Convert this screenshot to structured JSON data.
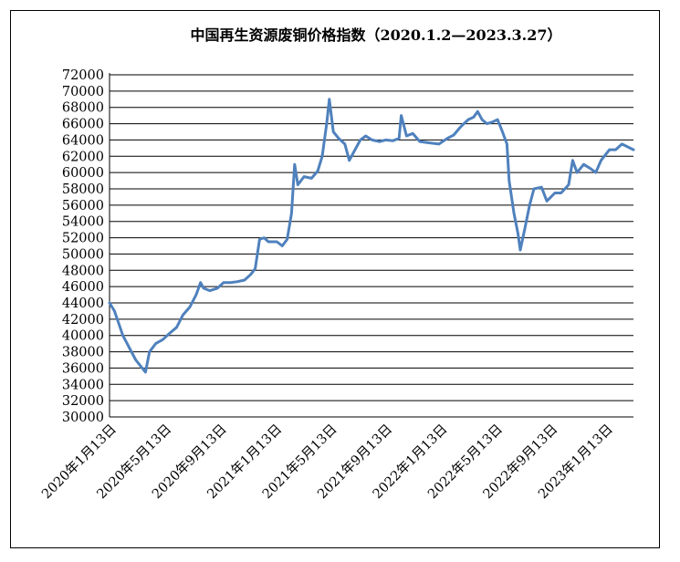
{
  "chart_data": {
    "type": "line",
    "title": "中国再生资源废铜价格指数（2020.1.2—2023.3.27）",
    "xlabel": "",
    "ylabel": "",
    "ylim": [
      30000,
      72000
    ],
    "yticks": [
      30000,
      32000,
      34000,
      36000,
      38000,
      40000,
      42000,
      44000,
      46000,
      48000,
      50000,
      52000,
      54000,
      56000,
      58000,
      60000,
      62000,
      64000,
      66000,
      68000,
      70000,
      72000
    ],
    "x_tick_labels": [
      "2020年1月13日",
      "2020年5月13日",
      "2020年9月13日",
      "2021年1月13日",
      "2021年5月13日",
      "2021年9月13日",
      "2022年1月13日",
      "2022年5月13日",
      "2022年9月13日",
      "2023年1月13日"
    ],
    "grid": true,
    "legend": "none",
    "line_color": "#4f81bd",
    "series": [
      {
        "values": [
          [
            "2020-01-02",
            44000
          ],
          [
            "2020-01-13",
            43000
          ],
          [
            "2020-02-01",
            40000
          ],
          [
            "2020-03-01",
            37000
          ],
          [
            "2020-03-23",
            35500
          ],
          [
            "2020-04-01",
            38000
          ],
          [
            "2020-04-15",
            39000
          ],
          [
            "2020-05-01",
            39500
          ],
          [
            "2020-05-15",
            40200
          ],
          [
            "2020-06-01",
            41000
          ],
          [
            "2020-06-15",
            42500
          ],
          [
            "2020-07-01",
            43500
          ],
          [
            "2020-07-15",
            45000
          ],
          [
            "2020-07-25",
            46500
          ],
          [
            "2020-08-01",
            45800
          ],
          [
            "2020-08-15",
            45500
          ],
          [
            "2020-09-01",
            45800
          ],
          [
            "2020-09-15",
            46500
          ],
          [
            "2020-10-01",
            46500
          ],
          [
            "2020-10-15",
            46600
          ],
          [
            "2020-11-01",
            46800
          ],
          [
            "2020-11-15",
            47500
          ],
          [
            "2020-11-25",
            48200
          ],
          [
            "2020-12-05",
            51800
          ],
          [
            "2020-12-15",
            52000
          ],
          [
            "2020-12-25",
            51500
          ],
          [
            "2021-01-13",
            51500
          ],
          [
            "2021-01-25",
            51000
          ],
          [
            "2021-02-05",
            51800
          ],
          [
            "2021-02-15",
            55000
          ],
          [
            "2021-02-22",
            61000
          ],
          [
            "2021-03-01",
            58500
          ],
          [
            "2021-03-15",
            59500
          ],
          [
            "2021-04-01",
            59300
          ],
          [
            "2021-04-15",
            60200
          ],
          [
            "2021-04-25",
            62000
          ],
          [
            "2021-05-05",
            66000
          ],
          [
            "2021-05-11",
            69000
          ],
          [
            "2021-05-20",
            65000
          ],
          [
            "2021-06-01",
            64200
          ],
          [
            "2021-06-15",
            63500
          ],
          [
            "2021-06-25",
            61500
          ],
          [
            "2021-07-05",
            62500
          ],
          [
            "2021-07-20",
            64000
          ],
          [
            "2021-08-01",
            64500
          ],
          [
            "2021-08-15",
            64000
          ],
          [
            "2021-09-01",
            63800
          ],
          [
            "2021-09-15",
            64000
          ],
          [
            "2021-10-01",
            63900
          ],
          [
            "2021-10-15",
            64200
          ],
          [
            "2021-10-20",
            67000
          ],
          [
            "2021-11-01",
            64500
          ],
          [
            "2021-11-15",
            64800
          ],
          [
            "2021-12-01",
            63800
          ],
          [
            "2021-12-15",
            63700
          ],
          [
            "2022-01-13",
            63500
          ],
          [
            "2022-02-01",
            64200
          ],
          [
            "2022-02-15",
            64600
          ],
          [
            "2022-03-01",
            65500
          ],
          [
            "2022-03-10",
            66000
          ],
          [
            "2022-03-20",
            66500
          ],
          [
            "2022-04-01",
            66800
          ],
          [
            "2022-04-10",
            67500
          ],
          [
            "2022-04-20",
            66500
          ],
          [
            "2022-05-01",
            66000
          ],
          [
            "2022-05-13",
            66200
          ],
          [
            "2022-05-25",
            66500
          ],
          [
            "2022-06-05",
            65000
          ],
          [
            "2022-06-15",
            63500
          ],
          [
            "2022-06-20",
            59000
          ],
          [
            "2022-07-01",
            55000
          ],
          [
            "2022-07-10",
            52500
          ],
          [
            "2022-07-15",
            50500
          ],
          [
            "2022-07-25",
            53000
          ],
          [
            "2022-08-05",
            56000
          ],
          [
            "2022-08-15",
            58000
          ],
          [
            "2022-09-01",
            58200
          ],
          [
            "2022-09-13",
            56500
          ],
          [
            "2022-10-01",
            57500
          ],
          [
            "2022-10-15",
            57500
          ],
          [
            "2022-11-01",
            58500
          ],
          [
            "2022-11-10",
            61500
          ],
          [
            "2022-11-20",
            60000
          ],
          [
            "2022-12-05",
            61000
          ],
          [
            "2022-12-20",
            60500
          ],
          [
            "2023-01-01",
            60000
          ],
          [
            "2023-01-13",
            61500
          ],
          [
            "2023-02-01",
            62800
          ],
          [
            "2023-02-15",
            62800
          ],
          [
            "2023-03-01",
            63500
          ],
          [
            "2023-03-27",
            62800
          ]
        ]
      }
    ]
  }
}
